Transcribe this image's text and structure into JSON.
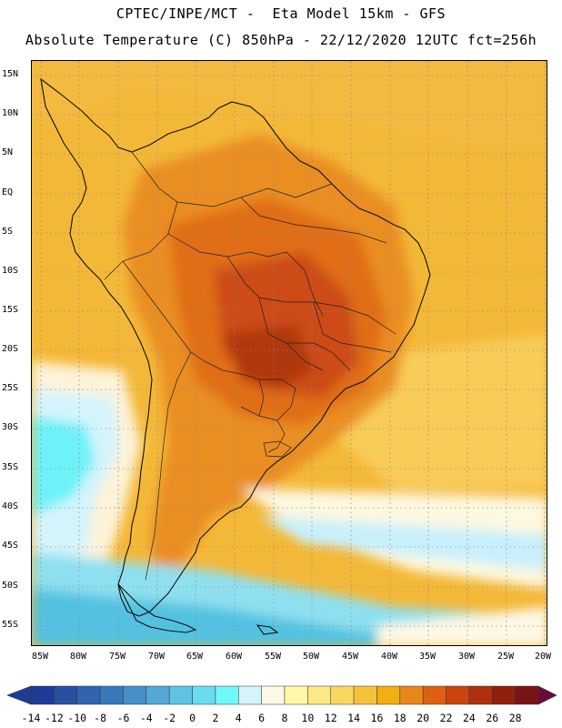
{
  "header": {
    "line1": "CPTEC/INPE/MCT -  Eta Model 15km - GFS",
    "line2": "Absolute Temperature (C) 850hPa - 22/12/2020 12UTC fct=256h"
  },
  "axes": {
    "lat_labels": [
      "15N",
      "10N",
      "5N",
      "EQ",
      "5S",
      "10S",
      "15S",
      "20S",
      "25S",
      "30S",
      "35S",
      "40S",
      "45S",
      "50S",
      "55S"
    ],
    "lon_labels": [
      "85W",
      "80W",
      "75W",
      "70W",
      "65W",
      "60W",
      "55W",
      "50W",
      "45W",
      "40W",
      "35W",
      "30W",
      "25W",
      "20W"
    ]
  },
  "legend": {
    "ticks": [
      "-14",
      "-12",
      "-10",
      "-8",
      "-6",
      "-4",
      "-2",
      "0",
      "2",
      "4",
      "6",
      "8",
      "10",
      "12",
      "14",
      "16",
      "18",
      "20",
      "22",
      "24",
      "26",
      "28"
    ],
    "colors": [
      "#1e3c96",
      "#2850a0",
      "#3064b0",
      "#3a78bc",
      "#4690c8",
      "#52a8d6",
      "#5ec4e2",
      "#6adcee",
      "#6ef8f8",
      "#d4f4fc",
      "#fdf8e6",
      "#fff8a8",
      "#fde888",
      "#fad860",
      "#f6c23e",
      "#f2ae12",
      "#e8861a",
      "#e06012",
      "#cc4410",
      "#b0300e",
      "#90200c",
      "#781414"
    ],
    "unit": "Temperature (C)"
  },
  "map": {
    "region": "South America",
    "variable": "Absolute Temperature 850hPa",
    "bounds": {
      "lon_min": -86,
      "lon_max": -19.5,
      "lat_min": -58,
      "lat_max": 17
    }
  }
}
